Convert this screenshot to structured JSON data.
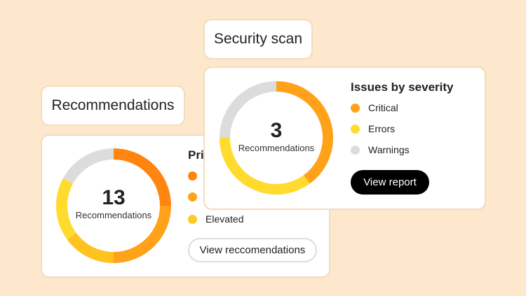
{
  "recommendations": {
    "label": "Recommendations",
    "count": "13",
    "count_label": "Recommendations",
    "legend_title": "Pri",
    "legend": [
      {
        "label": "",
        "color": "#ff8510"
      },
      {
        "label": "",
        "color": "#ffa21a"
      },
      {
        "label": "Elevated",
        "color": "#ffc928"
      }
    ],
    "segments": [
      {
        "fraction": 0.25,
        "color": "#ff8510"
      },
      {
        "fraction": 0.25,
        "color": "#ffa21a"
      },
      {
        "fraction": 0.15,
        "color": "#ffc21f"
      },
      {
        "fraction": 0.18,
        "color": "#ffdb2e"
      },
      {
        "fraction": 0.17,
        "color": "#dcdcdc"
      }
    ],
    "button": "View reccomendations"
  },
  "security": {
    "label": "Security scan",
    "count": "3",
    "count_label": "Recommendations",
    "legend_title": "Issues by severity",
    "legend": [
      {
        "label": "Critical",
        "color": "#ffa21a"
      },
      {
        "label": "Errors",
        "color": "#ffdb2e"
      },
      {
        "label": "Warnings",
        "color": "#dcdcdc"
      }
    ],
    "segments": [
      {
        "fraction": 0.4,
        "color": "#ffa21a"
      },
      {
        "fraction": 0.35,
        "color": "#ffdb2e"
      },
      {
        "fraction": 0.25,
        "color": "#dcdcdc"
      }
    ],
    "button": "View report"
  }
}
